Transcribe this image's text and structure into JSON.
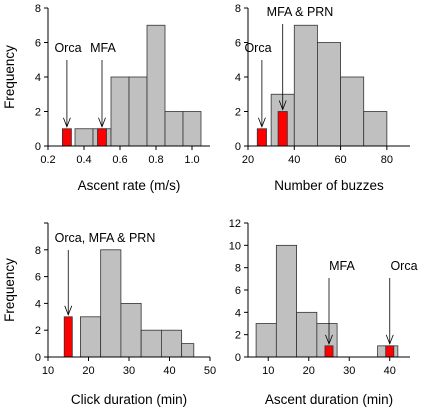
{
  "colors": {
    "gray_bar": "#c0c0c0",
    "highlight_bar": "#ff0000",
    "bar_edge": "#333333",
    "axis": "#000000"
  },
  "chart_data": [
    {
      "type": "bar",
      "xlabel": "Ascent rate (m/s)",
      "ylabel": "Frequency",
      "xlim": [
        0.2,
        1.1
      ],
      "ylim": [
        0,
        8
      ],
      "x_ticks": [
        0.2,
        0.4,
        0.6,
        0.8,
        1.0
      ],
      "x_tick_labels": [
        "0.2",
        "0.4",
        "0.6",
        "0.8",
        "1.0"
      ],
      "y_ticks": [
        0,
        2,
        4,
        6,
        8
      ],
      "y_tick_labels": [
        "0",
        "2",
        "4",
        "6",
        "8"
      ],
      "bins": [
        {
          "x0": 0.35,
          "x1": 0.45,
          "value": 1
        },
        {
          "x0": 0.45,
          "x1": 0.55,
          "value": 1
        },
        {
          "x0": 0.55,
          "x1": 0.65,
          "value": 4
        },
        {
          "x0": 0.65,
          "x1": 0.75,
          "value": 4
        },
        {
          "x0": 0.75,
          "x1": 0.85,
          "value": 7
        },
        {
          "x0": 0.85,
          "x1": 0.95,
          "value": 2
        },
        {
          "x0": 0.95,
          "x1": 1.05,
          "value": 2
        }
      ],
      "highlights": [
        {
          "x0": 0.28,
          "x1": 0.33,
          "value": 1
        },
        {
          "x0": 0.475,
          "x1": 0.525,
          "value": 1
        }
      ],
      "annotations": [
        {
          "text": "Orca",
          "x": 0.305,
          "y": 1
        },
        {
          "text": "MFA",
          "x": 0.5,
          "y": 1
        }
      ]
    },
    {
      "type": "bar",
      "xlabel": "Number of buzzes",
      "ylabel": "",
      "xlim": [
        20,
        90
      ],
      "ylim": [
        0,
        8
      ],
      "x_ticks": [
        20,
        40,
        60,
        80
      ],
      "x_tick_labels": [
        "20",
        "40",
        "60",
        "80"
      ],
      "y_ticks": [
        0,
        2,
        4,
        6,
        8
      ],
      "y_tick_labels": [
        "0",
        "2",
        "4",
        "6",
        "8"
      ],
      "bins": [
        {
          "x0": 30,
          "x1": 40,
          "value": 3
        },
        {
          "x0": 40,
          "x1": 50,
          "value": 7
        },
        {
          "x0": 50,
          "x1": 60,
          "value": 6
        },
        {
          "x0": 60,
          "x1": 70,
          "value": 4
        },
        {
          "x0": 70,
          "x1": 80,
          "value": 2
        }
      ],
      "highlights": [
        {
          "x0": 24,
          "x1": 28,
          "value": 1
        },
        {
          "x0": 33,
          "x1": 37,
          "value": 2
        }
      ],
      "annotations": [
        {
          "text": "Orca",
          "x": 26,
          "y": 1
        },
        {
          "text": "MFA & PRN",
          "x": 35,
          "y": 2
        }
      ]
    },
    {
      "type": "bar",
      "xlabel": "Click duration (min)",
      "ylabel": "Frequency",
      "xlim": [
        10,
        50
      ],
      "ylim": [
        0,
        10
      ],
      "x_ticks": [
        10,
        20,
        30,
        40,
        50
      ],
      "x_tick_labels": [
        "10",
        "20",
        "30",
        "40",
        "50"
      ],
      "y_ticks": [
        0,
        2,
        4,
        6,
        8,
        10
      ],
      "y_tick_labels": [
        "0",
        "2",
        "4",
        "6",
        "8",
        ""
      ],
      "bins": [
        {
          "x0": 18,
          "x1": 23,
          "value": 3
        },
        {
          "x0": 23,
          "x1": 28,
          "value": 8
        },
        {
          "x0": 28,
          "x1": 33,
          "value": 4
        },
        {
          "x0": 33,
          "x1": 38,
          "value": 2
        },
        {
          "x0": 38,
          "x1": 43,
          "value": 2
        },
        {
          "x0": 43,
          "x1": 46,
          "value": 1
        }
      ],
      "highlights": [
        {
          "x0": 14,
          "x1": 16,
          "value": 3
        }
      ],
      "annotations": [
        {
          "text": "Orca, MFA & PRN",
          "x": 15,
          "y": 3
        }
      ]
    },
    {
      "type": "bar",
      "xlabel": "Ascent duration (min)",
      "ylabel": "",
      "xlim": [
        5,
        45
      ],
      "ylim": [
        0,
        12
      ],
      "x_ticks": [
        10,
        20,
        30,
        40
      ],
      "x_tick_labels": [
        "10",
        "20",
        "30",
        "40"
      ],
      "y_ticks": [
        0,
        2,
        4,
        6,
        8,
        10,
        12
      ],
      "y_tick_labels": [
        "0",
        "2",
        "4",
        "6",
        "8",
        "10",
        "12"
      ],
      "bins": [
        {
          "x0": 7,
          "x1": 12,
          "value": 3
        },
        {
          "x0": 12,
          "x1": 17,
          "value": 10
        },
        {
          "x0": 17,
          "x1": 22,
          "value": 4
        },
        {
          "x0": 22,
          "x1": 27,
          "value": 3
        },
        {
          "x0": 37,
          "x1": 42,
          "value": 1
        }
      ],
      "highlights": [
        {
          "x0": 24,
          "x1": 26,
          "value": 1
        },
        {
          "x0": 39,
          "x1": 41,
          "value": 1
        }
      ],
      "annotations": [
        {
          "text": "MFA",
          "x": 25,
          "y": 1
        },
        {
          "text": "Orca",
          "x": 40,
          "y": 1
        }
      ]
    }
  ]
}
